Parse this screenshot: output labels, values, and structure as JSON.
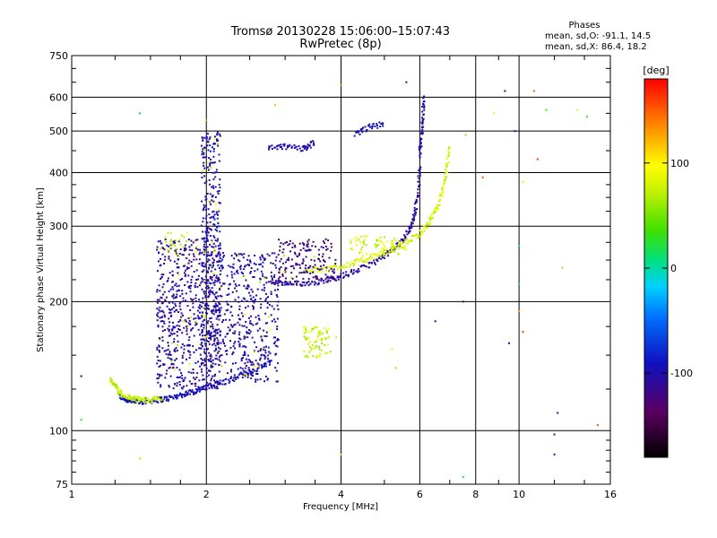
{
  "chart_data": {
    "type": "scatter",
    "title": "Tromsø 20130228 15:06:00–15:07:43",
    "subtitle": "RwPretec (8p)",
    "xlabel": "Frequency [MHz]",
    "ylabel": "Stationary phase Virtual Height [km]",
    "x_scale": "log",
    "y_scale": "log",
    "xlim": [
      1,
      16
    ],
    "ylim": [
      75,
      750
    ],
    "x_ticks": [
      1,
      2,
      4,
      6,
      8,
      10,
      16
    ],
    "x_tick_labels": [
      "1",
      "2",
      "4",
      "6",
      "8",
      "10",
      "16"
    ],
    "y_ticks": [
      75,
      100,
      200,
      300,
      400,
      500,
      600,
      750
    ],
    "y_tick_labels": [
      "75",
      "100",
      "200",
      "300",
      "400",
      "500",
      "600",
      "750"
    ],
    "grid": true,
    "stats": {
      "heading": "Phases",
      "line_o": "mean, sd,O: -91.1, 14.5",
      "line_x": "mean, sd,X:  86.4, 18.2"
    },
    "colorbar": {
      "label": "[deg]",
      "range": [
        -180,
        180
      ],
      "ticks": [
        100,
        0,
        -100
      ],
      "tick_labels": [
        "100",
        "0",
        "-100"
      ]
    },
    "traces": [
      {
        "x": [
          1.28,
          1.33,
          1.38,
          1.45,
          1.55,
          1.65,
          1.75,
          1.85,
          1.95,
          2.05,
          2.2,
          2.4,
          2.6,
          2.8
        ],
        "y": [
          120,
          118,
          117,
          117,
          118,
          119,
          121,
          123,
          125,
          127,
          130,
          135,
          140,
          145
        ],
        "phase": -95
      },
      {
        "x": [
          1.22,
          1.26,
          1.3,
          1.36,
          1.42,
          1.5,
          1.6
        ],
        "y": [
          132,
          126,
          121,
          119,
          118,
          118,
          119
        ],
        "phase": 75
      },
      {
        "x": [
          2.8,
          3.0,
          3.2,
          3.5,
          3.8,
          4.1,
          4.5,
          4.9,
          5.2,
          5.5,
          5.7,
          5.85,
          5.95,
          6.0
        ],
        "y": [
          222,
          220,
          220,
          222,
          226,
          231,
          240,
          252,
          263,
          278,
          296,
          320,
          360,
          420
        ],
        "phase": -105
      },
      {
        "x": [
          6.0,
          6.05,
          6.1,
          6.12
        ],
        "y": [
          440,
          480,
          540,
          610
        ],
        "phase": -100
      },
      {
        "x": [
          3.3,
          3.6,
          4.0,
          4.4,
          4.8,
          5.2,
          5.6,
          6.0,
          6.3,
          6.55,
          6.75,
          6.9,
          6.97
        ],
        "y": [
          236,
          238,
          242,
          248,
          256,
          264,
          275,
          288,
          305,
          330,
          365,
          410,
          460
        ],
        "phase": 80
      },
      {
        "x": [
          2.75,
          3.0,
          3.3,
          3.5
        ],
        "y": [
          455,
          460,
          455,
          470
        ],
        "phase": -100
      },
      {
        "x": [
          4.3,
          4.6,
          5.0
        ],
        "y": [
          490,
          510,
          520
        ],
        "phase": -95
      }
    ],
    "clusters": [
      {
        "x": [
          1.55,
          2.15
        ],
        "y": [
          125,
          280
        ],
        "count": 650,
        "phase": -105
      },
      {
        "x": [
          1.95,
          2.15
        ],
        "y": [
          140,
          500
        ],
        "count": 380,
        "phase": -100
      },
      {
        "x": [
          2.15,
          2.9
        ],
        "y": [
          130,
          260
        ],
        "count": 420,
        "phase": -100
      },
      {
        "x": [
          2.9,
          3.9
        ],
        "y": [
          225,
          280
        ],
        "count": 160,
        "phase": -120
      },
      {
        "x": [
          3.3,
          3.8
        ],
        "y": [
          148,
          175
        ],
        "count": 70,
        "phase": 75
      },
      {
        "x": [
          4.2,
          5.6
        ],
        "y": [
          255,
          285
        ],
        "count": 70,
        "phase": 80
      },
      {
        "x": [
          1.6,
          2.1
        ],
        "y": [
          250,
          290
        ],
        "count": 30,
        "phase": 80
      }
    ],
    "scattered_points": [
      {
        "x": 1.42,
        "y": 550,
        "phase": 10
      },
      {
        "x": 2.0,
        "y": 530,
        "phase": 50
      },
      {
        "x": 2.85,
        "y": 575,
        "phase": 120
      },
      {
        "x": 4.0,
        "y": 640,
        "phase": 40
      },
      {
        "x": 5.6,
        "y": 650,
        "phase": -110
      },
      {
        "x": 7.6,
        "y": 490,
        "phase": 60
      },
      {
        "x": 8.3,
        "y": 390,
        "phase": 150
      },
      {
        "x": 8.8,
        "y": 550,
        "phase": 90
      },
      {
        "x": 9.3,
        "y": 620,
        "phase": -100
      },
      {
        "x": 9.8,
        "y": 500,
        "phase": -110
      },
      {
        "x": 10.0,
        "y": 270,
        "phase": 0
      },
      {
        "x": 10.0,
        "y": 220,
        "phase": 20
      },
      {
        "x": 10.2,
        "y": 380,
        "phase": 80
      },
      {
        "x": 10.8,
        "y": 620,
        "phase": 150
      },
      {
        "x": 11.0,
        "y": 430,
        "phase": 160
      },
      {
        "x": 11.5,
        "y": 560,
        "phase": 40
      },
      {
        "x": 12.5,
        "y": 240,
        "phase": 60
      },
      {
        "x": 13.5,
        "y": 560,
        "phase": 90
      },
      {
        "x": 14.2,
        "y": 540,
        "phase": 30
      },
      {
        "x": 15.0,
        "y": 103,
        "phase": 150
      },
      {
        "x": 12.0,
        "y": 98,
        "phase": -110
      },
      {
        "x": 12.0,
        "y": 88,
        "phase": -100
      },
      {
        "x": 7.5,
        "y": 78,
        "phase": 20
      },
      {
        "x": 4.0,
        "y": 88,
        "phase": 70
      },
      {
        "x": 1.42,
        "y": 86,
        "phase": 70
      },
      {
        "x": 1.05,
        "y": 106,
        "phase": 30
      },
      {
        "x": 1.05,
        "y": 134,
        "phase": -100
      },
      {
        "x": 7.5,
        "y": 200,
        "phase": -110
      },
      {
        "x": 6.5,
        "y": 180,
        "phase": -100
      },
      {
        "x": 5.2,
        "y": 155,
        "phase": 90
      },
      {
        "x": 5.3,
        "y": 140,
        "phase": 60
      },
      {
        "x": 3.9,
        "y": 165,
        "phase": 80
      },
      {
        "x": 12.2,
        "y": 110,
        "phase": -100
      },
      {
        "x": 9.5,
        "y": 160,
        "phase": -110
      },
      {
        "x": 10.0,
        "y": 190,
        "phase": 130
      },
      {
        "x": 10.2,
        "y": 170,
        "phase": 160
      }
    ]
  }
}
